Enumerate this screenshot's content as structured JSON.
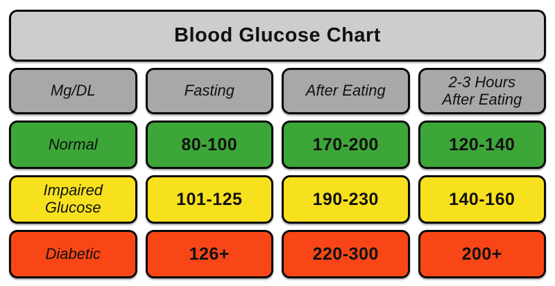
{
  "title": "Blood Glucose Chart",
  "colors": {
    "title_bg": "#cdcdcd",
    "header_bg": "#a8a8a8",
    "normal_bg": "#3da639",
    "impaired_bg": "#f7e11e",
    "diabetic_bg": "#f94616",
    "border": "#0a0a0a"
  },
  "table": {
    "headers": [
      "Mg/DL",
      "Fasting",
      "After Eating",
      "2-3 Hours\nAfter Eating"
    ],
    "rows": [
      {
        "label": "Normal",
        "bg": "#3da639",
        "values": [
          "80-100",
          "170-200",
          "120-140"
        ]
      },
      {
        "label": "Impaired\nGlucose",
        "bg": "#f7e11e",
        "values": [
          "101-125",
          "190-230",
          "140-160"
        ]
      },
      {
        "label": "Diabetic",
        "bg": "#f94616",
        "values": [
          "126+",
          "220-300",
          "200+"
        ]
      }
    ]
  },
  "chart_data": {
    "type": "table",
    "title": "Blood Glucose Chart",
    "unit": "Mg/DL",
    "columns": [
      "Mg/DL",
      "Fasting",
      "After Eating",
      "2-3 Hours After Eating"
    ],
    "rows": [
      {
        "category": "Normal",
        "fasting": "80-100",
        "after_eating": "170-200",
        "after_eating_2_3_hours": "120-140"
      },
      {
        "category": "Impaired Glucose",
        "fasting": "101-125",
        "after_eating": "190-230",
        "after_eating_2_3_hours": "140-160"
      },
      {
        "category": "Diabetic",
        "fasting": "126+",
        "after_eating": "220-300",
        "after_eating_2_3_hours": "200+"
      }
    ],
    "legend_position": "none",
    "row_colors": {
      "Normal": "#3da639",
      "Impaired Glucose": "#f7e11e",
      "Diabetic": "#f94616"
    }
  }
}
